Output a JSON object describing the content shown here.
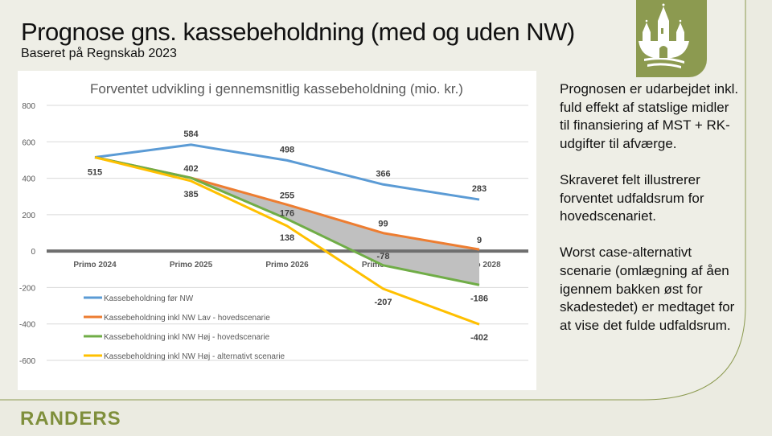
{
  "slide": {
    "title": "Prognose gns. kassebeholdning (med og uden NW)",
    "subtitle": "Baseret på Regnskab 2023",
    "side_paragraphs": [
      "Prognosen er udarbejdet inkl. fuld effekt af statslige midler til finansiering af MST + RK-udgifter til afværge.",
      "Skraveret felt illustrerer forventet udfaldsrum for hovedscenariet.",
      "Worst case-alternativt scenarie (omlægning af åen igennem bakken øst for skadestedet) er medtaget for at vise det fulde udfaldsrum."
    ],
    "brand": "RANDERS",
    "colors": {
      "accent": "#8c9a50",
      "background": "#ebebe1"
    }
  },
  "chart_data": {
    "type": "line",
    "title": "Forventet udvikling i gennemsnitlig kassebeholdning (mio. kr.)",
    "categories": [
      "Primo 2024",
      "Primo 2025",
      "Primo 2026",
      "Primo 2027",
      "Primo 2028"
    ],
    "ylim": [
      -600,
      800
    ],
    "yticks": [
      800,
      600,
      400,
      200,
      0,
      -200,
      -400,
      -600
    ],
    "grid": true,
    "legend_placement": "bottom-left",
    "shaded_range": {
      "between": [
        "Kassebeholdning inkl NW Lav - hovedscenarie",
        "Kassebeholdning inkl NW Høj - hovedscenarie"
      ],
      "from": "Primo 2025",
      "to": "Primo 2028",
      "color": "#c0c0c0"
    },
    "series": [
      {
        "name": "Kassebeholdning før NW",
        "color": "#5b9bd5",
        "values": [
          515,
          584,
          498,
          366,
          283
        ],
        "labels": [
          "515",
          "584",
          "498",
          "366",
          "283"
        ]
      },
      {
        "name": "Kassebeholdning inkl NW Lav - hovedscenarie",
        "color": "#ed7d31",
        "values": [
          515,
          402,
          255,
          99,
          9
        ],
        "labels": [
          "",
          "402",
          "255",
          "99",
          "9"
        ]
      },
      {
        "name": "Kassebeholdning inkl NW Høj - hovedscenarie",
        "color": "#70ad47",
        "values": [
          515,
          402,
          176,
          -78,
          -186
        ],
        "labels": [
          "",
          "",
          "176",
          "-78",
          "-186"
        ]
      },
      {
        "name": "Kassebeholdning inkl NW Høj - alternativt scenarie",
        "color": "#ffc000",
        "values": [
          515,
          385,
          138,
          -207,
          -402
        ],
        "labels": [
          "",
          "385",
          "138",
          "-207",
          "-402"
        ]
      }
    ]
  }
}
